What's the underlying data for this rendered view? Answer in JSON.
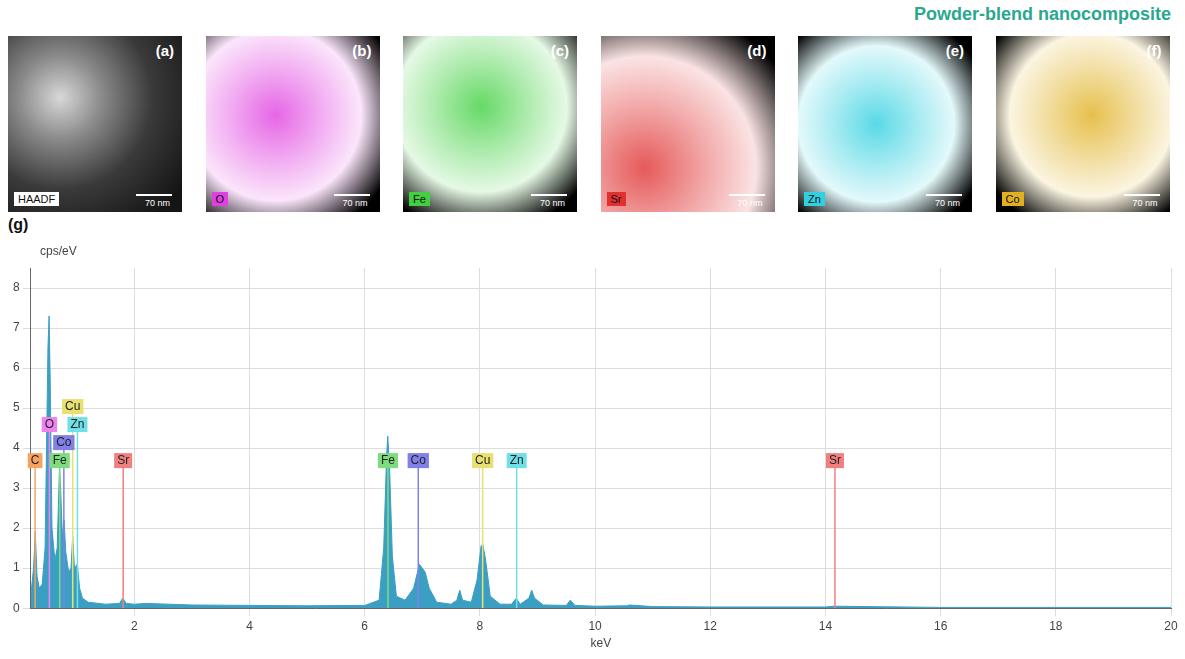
{
  "title": "Powder-blend nanocomposite",
  "title_color": "#2aa88f",
  "panels": [
    {
      "letter": "(a)",
      "label": "HAADF",
      "color": "#ffffff",
      "scale_bar": "70 nm"
    },
    {
      "letter": "(b)",
      "label": "O",
      "color": "#e040e0",
      "scale_bar": "70 nm"
    },
    {
      "letter": "(c)",
      "label": "Fe",
      "color": "#40d040",
      "scale_bar": "70 nm"
    },
    {
      "letter": "(d)",
      "label": "Sr",
      "color": "#e03030",
      "scale_bar": "70 nm"
    },
    {
      "letter": "(e)",
      "label": "Zn",
      "color": "#30d0e0",
      "scale_bar": "70 nm"
    },
    {
      "letter": "(f)",
      "label": "Co",
      "color": "#e0b020",
      "scale_bar": "70 nm"
    }
  ],
  "chart_data": {
    "type": "line",
    "panel_label": "(g)",
    "y_label": "cps/eV",
    "x_label": "keV",
    "xlim": [
      0.2,
      20
    ],
    "ylim": [
      0,
      8.5
    ],
    "xticks": [
      2,
      4,
      6,
      8,
      10,
      12,
      14,
      16,
      18,
      20
    ],
    "yticks": [
      0,
      1,
      2,
      3,
      4,
      5,
      6,
      7,
      8
    ],
    "grid": true,
    "tick_labels": true,
    "color": "#3b9fc4",
    "x": [
      0.2,
      0.25,
      0.28,
      0.31,
      0.35,
      0.4,
      0.45,
      0.5,
      0.52,
      0.54,
      0.57,
      0.62,
      0.66,
      0.7,
      0.72,
      0.75,
      0.78,
      0.81,
      0.86,
      0.9,
      0.93,
      0.96,
      1.01,
      1.05,
      1.1,
      1.2,
      1.5,
      1.74,
      1.8,
      1.86,
      2.0,
      2.2,
      3,
      4,
      5,
      6.0,
      6.25,
      6.33,
      6.38,
      6.4,
      6.43,
      6.48,
      6.55,
      6.7,
      6.85,
      6.95,
      7.05,
      7.12,
      7.25,
      7.5,
      7.6,
      7.65,
      7.7,
      7.85,
      7.95,
      8.02,
      8.05,
      8.1,
      8.18,
      8.35,
      8.55,
      8.63,
      8.7,
      8.85,
      8.9,
      8.95,
      9.1,
      9.5,
      9.57,
      9.65,
      10,
      10.55,
      10.6,
      11,
      12,
      14,
      14.15,
      16,
      18,
      20
    ],
    "values": [
      0.3,
      1.0,
      1.9,
      0.8,
      0.5,
      0.6,
      1.5,
      6.5,
      7.3,
      5.6,
      2.0,
      1.2,
      1.5,
      3.5,
      3.0,
      1.8,
      2.2,
      1.4,
      0.9,
      1.0,
      1.8,
      1.0,
      1.1,
      0.5,
      0.25,
      0.15,
      0.1,
      0.12,
      0.25,
      0.12,
      0.1,
      0.12,
      0.08,
      0.07,
      0.06,
      0.07,
      0.2,
      1.5,
      3.8,
      4.3,
      3.6,
      1.3,
      0.3,
      0.2,
      0.5,
      1.1,
      0.9,
      0.5,
      0.15,
      0.1,
      0.2,
      0.45,
      0.2,
      0.15,
      0.7,
      1.55,
      1.6,
      1.2,
      0.3,
      0.1,
      0.1,
      0.25,
      0.1,
      0.25,
      0.45,
      0.25,
      0.08,
      0.07,
      0.2,
      0.07,
      0.05,
      0.06,
      0.08,
      0.04,
      0.03,
      0.03,
      0.05,
      0.02,
      0.02,
      0.02
    ],
    "element_markers": [
      {
        "label": "C",
        "color": "#f4a460",
        "x": 0.277,
        "height": 3.5
      },
      {
        "label": "O",
        "color": "#ee82ee",
        "x": 0.525,
        "height": 4.4
      },
      {
        "label": "Fe",
        "color": "#7ddc7d",
        "x": 0.705,
        "height": 3.5
      },
      {
        "label": "Co",
        "color": "#8080e8",
        "x": 0.776,
        "height": 3.95
      },
      {
        "label": "Cu",
        "color": "#e8e070",
        "x": 0.93,
        "height": 4.85
      },
      {
        "label": "Zn",
        "color": "#70e0e8",
        "x": 1.012,
        "height": 4.4
      },
      {
        "label": "Sr",
        "color": "#f08080",
        "x": 1.806,
        "height": 3.5
      },
      {
        "label": "Fe",
        "color": "#7ddc7d",
        "x": 6.404,
        "height": 3.5
      },
      {
        "label": "Co",
        "color": "#8080e8",
        "x": 6.93,
        "height": 3.5
      },
      {
        "label": "Cu",
        "color": "#e8e070",
        "x": 8.048,
        "height": 3.5
      },
      {
        "label": "Zn",
        "color": "#70e0e8",
        "x": 8.639,
        "height": 3.5
      },
      {
        "label": "Sr",
        "color": "#f08080",
        "x": 14.165,
        "height": 3.5
      }
    ]
  }
}
